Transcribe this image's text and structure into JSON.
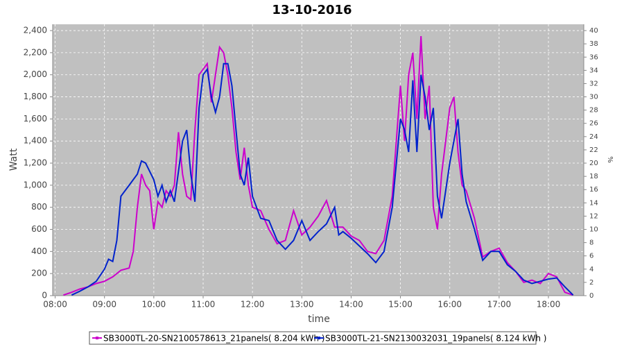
{
  "chart_data": {
    "type": "line",
    "title": "13-10-2016",
    "x_label": "time",
    "y_label": "Watt",
    "y2_label": "%",
    "xlim": [
      "07:57",
      "18:43"
    ],
    "xticks": [
      "08:00",
      "09:00",
      "10:00",
      "11:00",
      "12:00",
      "13:00",
      "14:00",
      "15:00",
      "16:00",
      "17:00",
      "18:00"
    ],
    "ylim": [
      0,
      2457
    ],
    "yticks": [
      0,
      200,
      400,
      600,
      800,
      {
        "value": 1000,
        "label": "1,000"
      },
      {
        "value": 1200,
        "label": "1,200"
      },
      {
        "value": 1400,
        "label": "1,400"
      },
      {
        "value": 1600,
        "label": "1,600"
      },
      {
        "value": 1800,
        "label": "1,800"
      },
      {
        "value": 2000,
        "label": "2,000"
      },
      {
        "value": 2200,
        "label": "2,200"
      },
      {
        "value": 2400,
        "label": "2,400"
      }
    ],
    "y2lim": [
      0,
      40.95
    ],
    "y2ticks": [
      0,
      2,
      4,
      6,
      8,
      10,
      12,
      14,
      16,
      18,
      20,
      22,
      24,
      26,
      28,
      30,
      32,
      34,
      36,
      38,
      40
    ],
    "grid": true,
    "legend": "bottom",
    "series": [
      {
        "name": "SB3000TL-20-SN2100578613_21panels( 8.204 kWh )",
        "color": "#cc00cc",
        "x": [
          "08:10",
          "08:20",
          "08:30",
          "08:40",
          "08:50",
          "09:00",
          "09:10",
          "09:20",
          "09:30",
          "09:35",
          "09:40",
          "09:45",
          "09:50",
          "09:55",
          "10:00",
          "10:05",
          "10:10",
          "10:15",
          "10:20",
          "10:25",
          "10:30",
          "10:35",
          "10:40",
          "10:45",
          "10:50",
          "10:55",
          "11:00",
          "11:05",
          "11:10",
          "11:15",
          "11:20",
          "11:25",
          "11:30",
          "11:35",
          "11:40",
          "11:45",
          "11:50",
          "11:55",
          "12:00",
          "12:10",
          "12:20",
          "12:30",
          "12:40",
          "12:50",
          "13:00",
          "13:10",
          "13:20",
          "13:30",
          "13:40",
          "13:50",
          "14:00",
          "14:10",
          "14:20",
          "14:30",
          "14:40",
          "14:50",
          "14:55",
          "15:00",
          "15:05",
          "15:10",
          "15:15",
          "15:20",
          "15:25",
          "15:30",
          "15:35",
          "15:40",
          "15:45",
          "15:50",
          "16:00",
          "16:05",
          "16:10",
          "16:15",
          "16:20",
          "16:30",
          "16:40",
          "16:50",
          "17:00",
          "17:10",
          "17:20",
          "17:30",
          "17:40",
          "17:50",
          "18:00",
          "18:10",
          "18:20",
          "18:30"
        ],
        "values": [
          5,
          30,
          60,
          80,
          110,
          130,
          170,
          230,
          250,
          400,
          800,
          1100,
          1000,
          950,
          600,
          850,
          800,
          950,
          900,
          1000,
          1480,
          1100,
          900,
          870,
          1500,
          2000,
          2050,
          2100,
          1750,
          2000,
          2250,
          2200,
          2000,
          1700,
          1300,
          1050,
          1340,
          1000,
          800,
          770,
          600,
          470,
          500,
          770,
          550,
          620,
          720,
          860,
          620,
          620,
          540,
          500,
          400,
          380,
          500,
          900,
          1400,
          1900,
          1400,
          2000,
          2200,
          1600,
          2350,
          1600,
          1900,
          800,
          600,
          1100,
          1700,
          1800,
          1300,
          1000,
          950,
          700,
          350,
          400,
          430,
          300,
          220,
          120,
          140,
          110,
          200,
          170,
          30,
          5
        ]
      },
      {
        "name": "SB3000TL-21-SN2130032031_19panels( 8.124 kWh )",
        "color": "#0022cc",
        "x": [
          "08:20",
          "08:30",
          "08:40",
          "08:50",
          "09:00",
          "09:05",
          "09:10",
          "09:15",
          "09:20",
          "09:30",
          "09:35",
          "09:40",
          "09:45",
          "09:50",
          "10:00",
          "10:05",
          "10:10",
          "10:15",
          "10:20",
          "10:25",
          "10:35",
          "10:40",
          "10:45",
          "10:50",
          "10:55",
          "11:00",
          "11:05",
          "11:10",
          "11:15",
          "11:20",
          "11:25",
          "11:30",
          "11:35",
          "11:40",
          "11:45",
          "11:50",
          "11:55",
          "12:00",
          "12:10",
          "12:20",
          "12:30",
          "12:40",
          "12:50",
          "13:00",
          "13:10",
          "13:20",
          "13:30",
          "13:40",
          "13:45",
          "13:50",
          "14:00",
          "14:10",
          "14:20",
          "14:30",
          "14:40",
          "14:50",
          "15:00",
          "15:05",
          "15:10",
          "15:15",
          "15:20",
          "15:25",
          "15:30",
          "15:35",
          "15:40",
          "15:45",
          "15:50",
          "16:00",
          "16:10",
          "16:15",
          "16:20",
          "16:30",
          "16:40",
          "16:50",
          "17:00",
          "17:10",
          "17:20",
          "17:30",
          "17:40",
          "17:50",
          "18:00",
          "18:10",
          "18:20",
          "18:30"
        ],
        "values": [
          5,
          40,
          80,
          130,
          240,
          330,
          310,
          500,
          900,
          1000,
          1050,
          1100,
          1220,
          1200,
          1050,
          900,
          1000,
          850,
          950,
          850,
          1400,
          1500,
          1100,
          850,
          1700,
          2000,
          2050,
          1800,
          1660,
          1800,
          2100,
          2100,
          1900,
          1500,
          1100,
          1000,
          1250,
          900,
          700,
          680,
          500,
          420,
          500,
          680,
          500,
          580,
          650,
          800,
          550,
          580,
          520,
          450,
          380,
          300,
          400,
          800,
          1600,
          1500,
          1300,
          1950,
          1300,
          2000,
          1800,
          1500,
          1700,
          900,
          700,
          1200,
          1600,
          1100,
          850,
          600,
          320,
          400,
          400,
          280,
          220,
          140,
          110,
          130,
          150,
          160,
          80,
          5
        ]
      }
    ]
  }
}
